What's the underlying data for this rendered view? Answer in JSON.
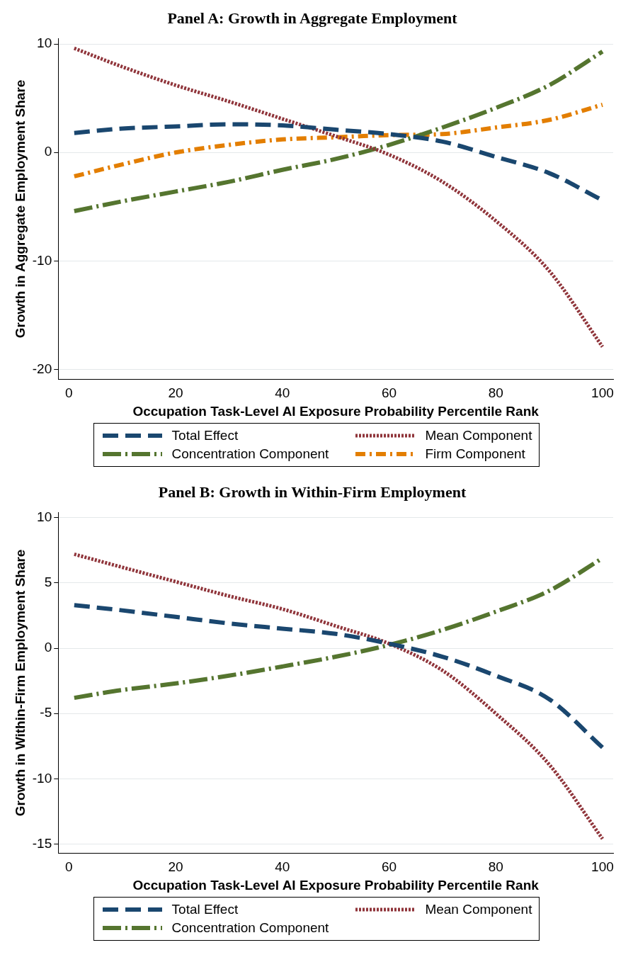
{
  "chart_data": [
    {
      "type": "line",
      "title": "Panel A: Growth in Aggregate Employment",
      "xlabel": "Occupation Task-Level AI Exposure Probability Percentile Rank",
      "ylabel": "Growth in Aggregate Employment Share",
      "x": [
        1,
        10,
        20,
        30,
        40,
        50,
        60,
        70,
        80,
        90,
        100
      ],
      "xlim": [
        -2,
        102
      ],
      "xticks": [
        0,
        20,
        40,
        60,
        80,
        100
      ],
      "ylim": [
        -20.9,
        10.5
      ],
      "yticks": [
        -20,
        -10,
        0,
        10
      ],
      "grid": "y",
      "legend": "bottom",
      "marker": "none",
      "series": [
        {
          "name": "Total Effect",
          "color": "#1a476f",
          "line_style": "dashed",
          "values": [
            1.8,
            2.2,
            2.4,
            2.6,
            2.5,
            2.1,
            1.7,
            1.0,
            -0.4,
            -1.9,
            -4.4
          ]
        },
        {
          "name": "Mean Component",
          "color": "#90353b",
          "line_style": "dotted",
          "values": [
            9.6,
            7.9,
            6.2,
            4.7,
            3.1,
            1.5,
            -0.2,
            -2.7,
            -6.3,
            -10.9,
            -17.9
          ]
        },
        {
          "name": "Concentration Component",
          "color": "#55752f",
          "line_style": "dashed",
          "values": [
            -5.4,
            -4.5,
            -3.6,
            -2.7,
            -1.6,
            -0.6,
            0.7,
            2.3,
            4.1,
            6.2,
            9.3
          ]
        },
        {
          "name": "Firm Component",
          "color": "#e37e00",
          "line_style": "dashed",
          "values": [
            -2.2,
            -1.1,
            0.0,
            0.7,
            1.2,
            1.4,
            1.6,
            1.7,
            2.3,
            3.0,
            4.4
          ]
        }
      ]
    },
    {
      "type": "line",
      "title": "Panel B: Growth in Within-Firm Employment",
      "xlabel": "Occupation Task-Level AI Exposure Probability Percentile Rank",
      "ylabel": "Growth in Within-Firm Employment Share",
      "x": [
        1,
        10,
        20,
        30,
        40,
        50,
        60,
        70,
        80,
        90,
        100
      ],
      "xlim": [
        -2,
        102
      ],
      "xticks": [
        0,
        20,
        40,
        60,
        80,
        100
      ],
      "ylim": [
        -15.7,
        10.4
      ],
      "yticks": [
        -15,
        -10,
        -5,
        0,
        5,
        10
      ],
      "grid": "y",
      "legend": "bottom",
      "marker": "none",
      "series": [
        {
          "name": "Total Effect",
          "color": "#1a476f",
          "line_style": "dashed",
          "values": [
            3.3,
            2.9,
            2.4,
            1.9,
            1.5,
            1.1,
            0.35,
            -0.65,
            -2.1,
            -3.9,
            -7.6
          ]
        },
        {
          "name": "Mean Component",
          "color": "#90353b",
          "line_style": "dotted",
          "values": [
            7.2,
            6.2,
            5.1,
            4.0,
            3.0,
            1.7,
            0.35,
            -1.7,
            -5.0,
            -8.9,
            -14.6
          ]
        },
        {
          "name": "Concentration Component",
          "color": "#55752f",
          "line_style": "dashed",
          "values": [
            -3.8,
            -3.2,
            -2.7,
            -2.1,
            -1.4,
            -0.65,
            0.25,
            1.4,
            2.8,
            4.4,
            6.9
          ]
        }
      ]
    }
  ]
}
